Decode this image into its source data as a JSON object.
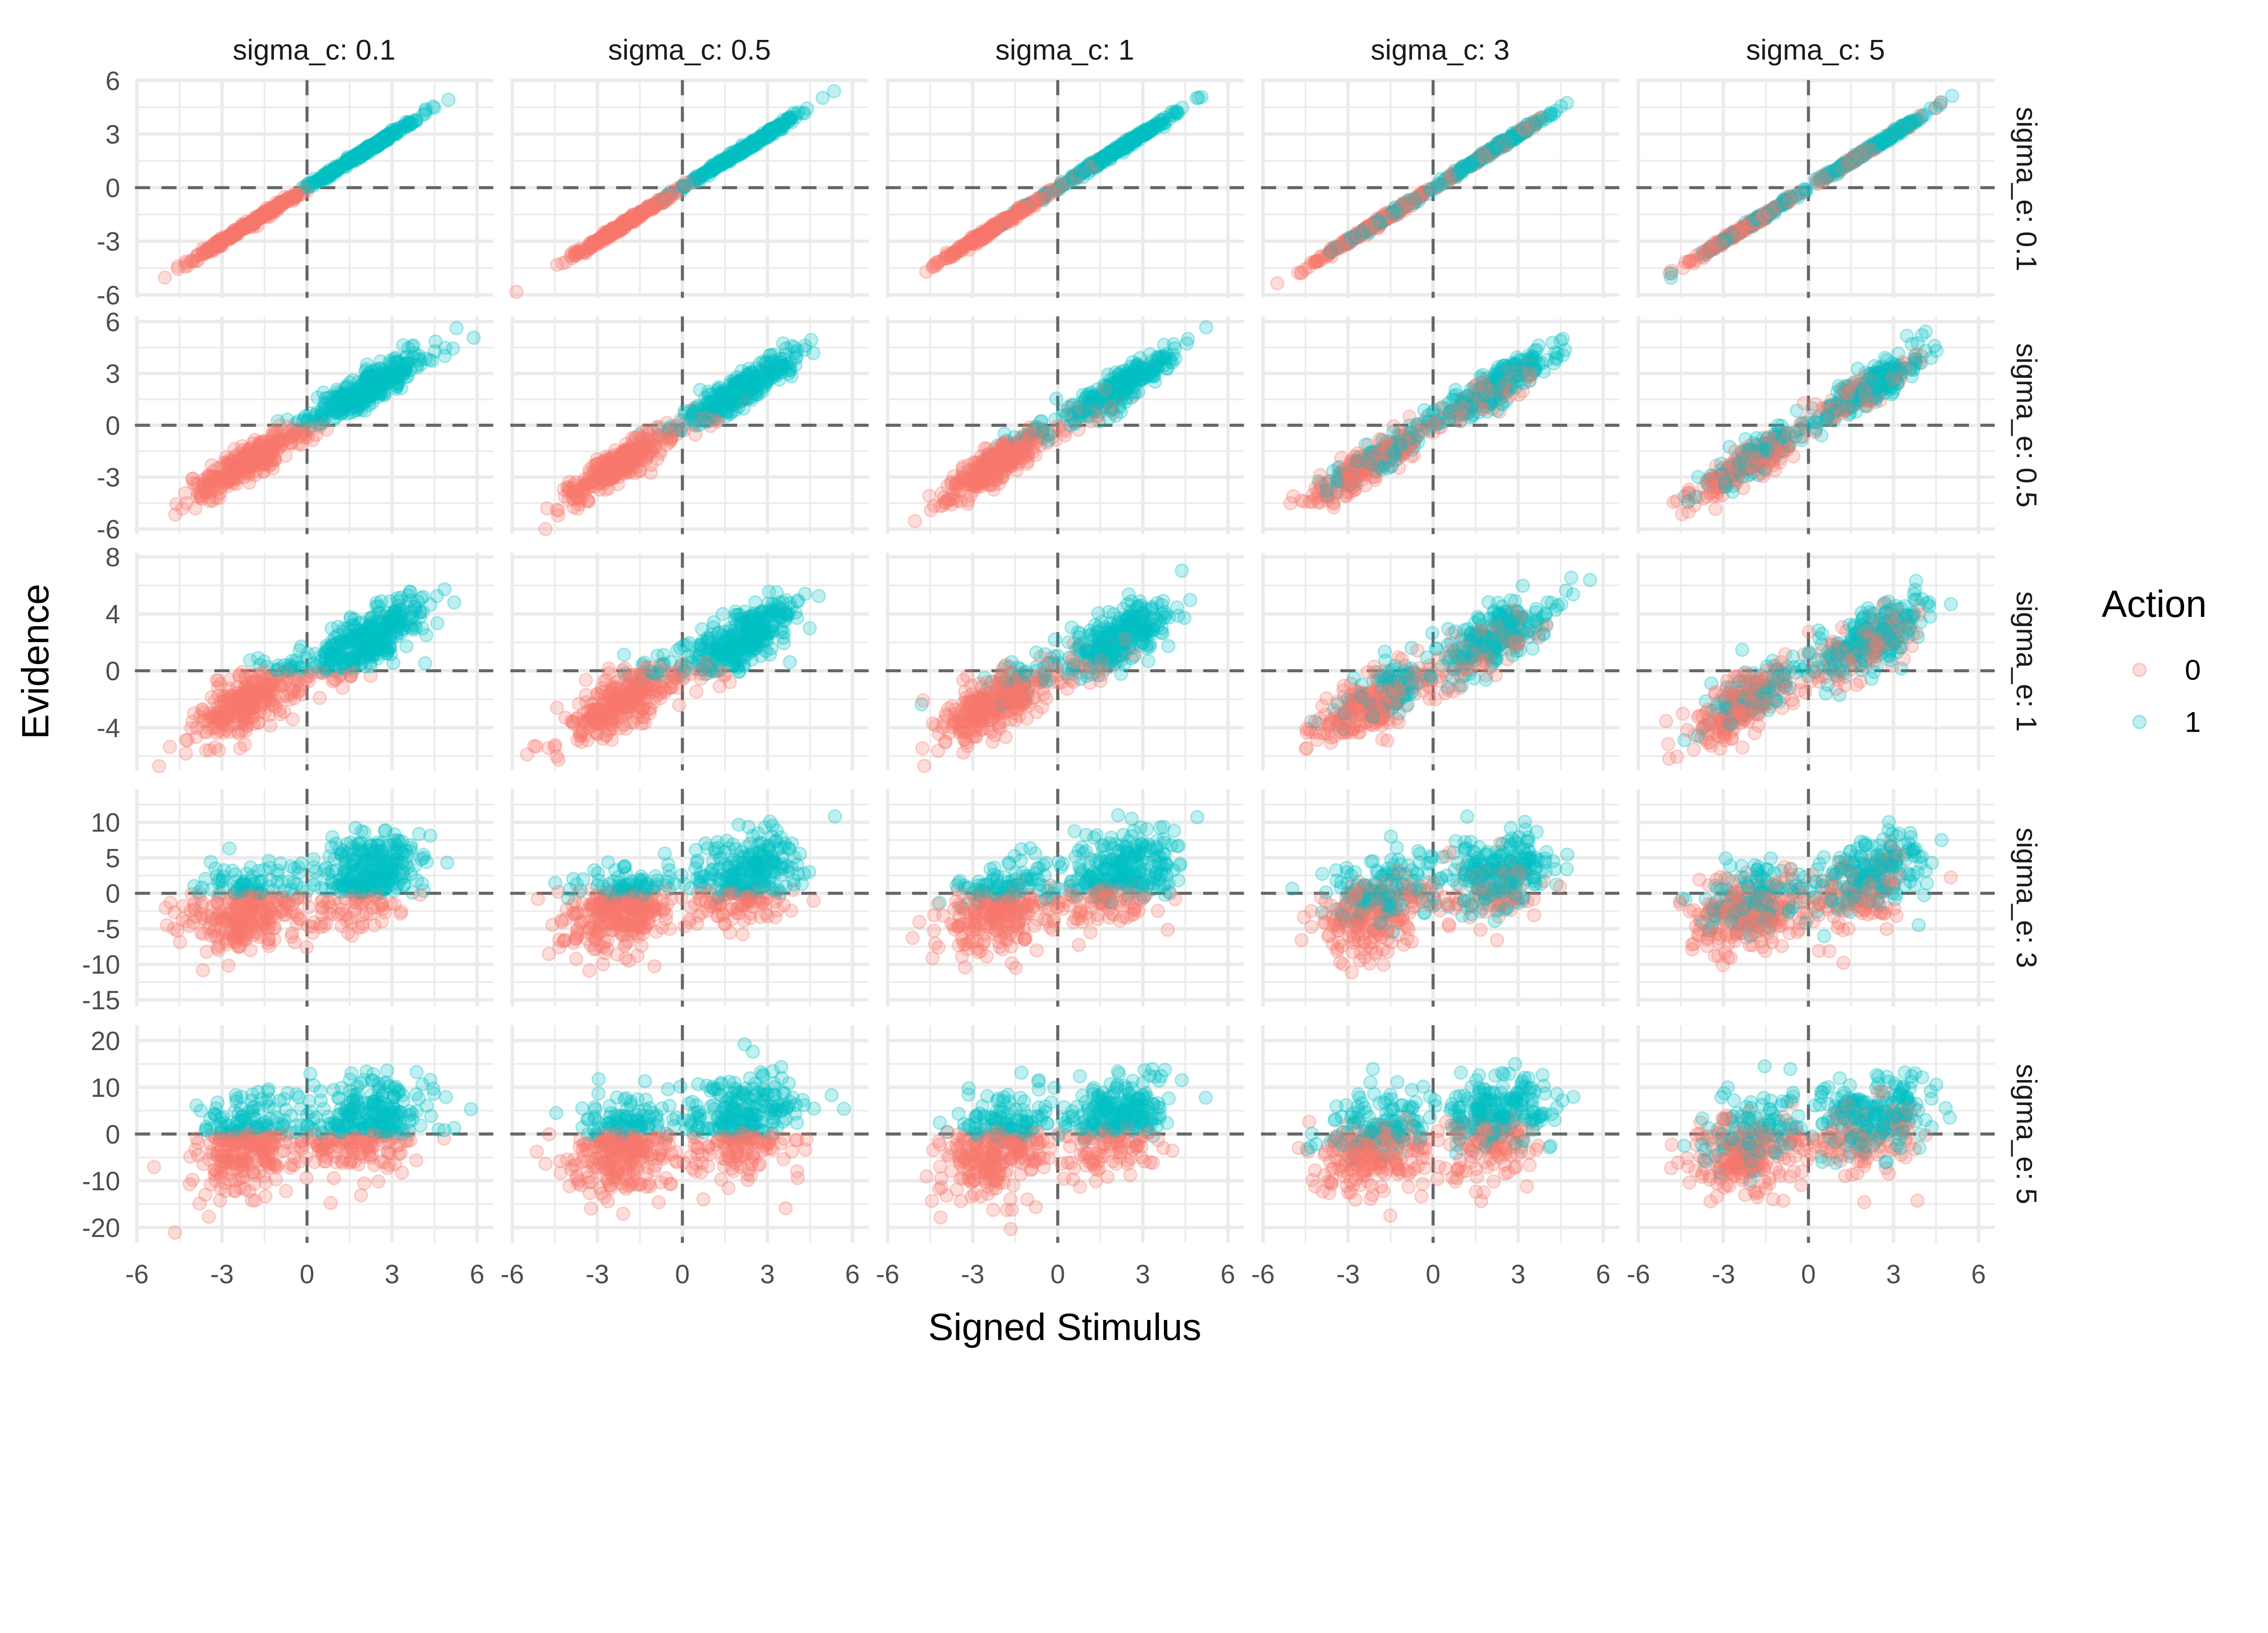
{
  "chart_data": {
    "type": "scatter",
    "layout": "facet_grid",
    "xlabel": "Signed Stimulus",
    "ylabel": "Evidence",
    "column_facet": {
      "variable": "sigma_c",
      "values": [
        0.1,
        0.5,
        1,
        3,
        5
      ],
      "labels": [
        "sigma_c: 0.1",
        "sigma_c: 0.5",
        "sigma_c: 1",
        "sigma_c: 3",
        "sigma_c: 5"
      ]
    },
    "row_facet": {
      "variable": "sigma_e",
      "values": [
        0.1,
        0.5,
        1,
        3,
        5
      ],
      "labels": [
        "sigma_e: 0.1",
        "sigma_e: 0.5",
        "sigma_e: 1",
        "sigma_e: 3",
        "sigma_e: 5"
      ]
    },
    "xlim": [
      -6.07,
      6.57
    ],
    "x_ticks": [
      -6,
      -3,
      0,
      3,
      6
    ],
    "x_tick_labels": [
      "-6",
      "-3",
      "0",
      "3",
      "6"
    ],
    "rows": [
      {
        "ylim": [
          -6.17,
          6.02
        ],
        "y_ticks": [
          -6,
          -3,
          0,
          3,
          6
        ],
        "y_tick_labels": [
          "-6",
          "-3",
          "0",
          "3",
          "6"
        ]
      },
      {
        "ylim": [
          -6.3,
          6.3
        ],
        "y_ticks": [
          -6,
          -3,
          0,
          3,
          6
        ],
        "y_tick_labels": [
          "-6",
          "-3",
          "0",
          "3",
          "6"
        ]
      },
      {
        "ylim": [
          -7.0,
          8.3
        ],
        "y_ticks": [
          -4,
          0,
          4,
          8
        ],
        "y_tick_labels": [
          "-4",
          "0",
          "4",
          "8"
        ]
      },
      {
        "ylim": [
          -15.96,
          14.7
        ],
        "y_ticks": [
          -15,
          -10,
          -5,
          0,
          5,
          10
        ],
        "y_tick_labels": [
          "-15",
          "-10",
          "-5",
          "0",
          "5",
          "10"
        ]
      },
      {
        "ylim": [
          -23.3,
          23.3
        ],
        "y_ticks": [
          -20,
          -10,
          0,
          10,
          20
        ],
        "y_tick_labels": [
          "-20",
          "-10",
          "0",
          "10",
          "20"
        ]
      }
    ],
    "reference_lines": {
      "x": 0,
      "y": 0,
      "style": "dashed"
    },
    "grid": true,
    "legend": {
      "title": "Action",
      "position": "right",
      "entries": [
        {
          "label": "0",
          "color": "#F8766D"
        },
        {
          "label": "1",
          "color": "#00BFC4"
        }
      ]
    },
    "point_alpha": 0.25
  }
}
